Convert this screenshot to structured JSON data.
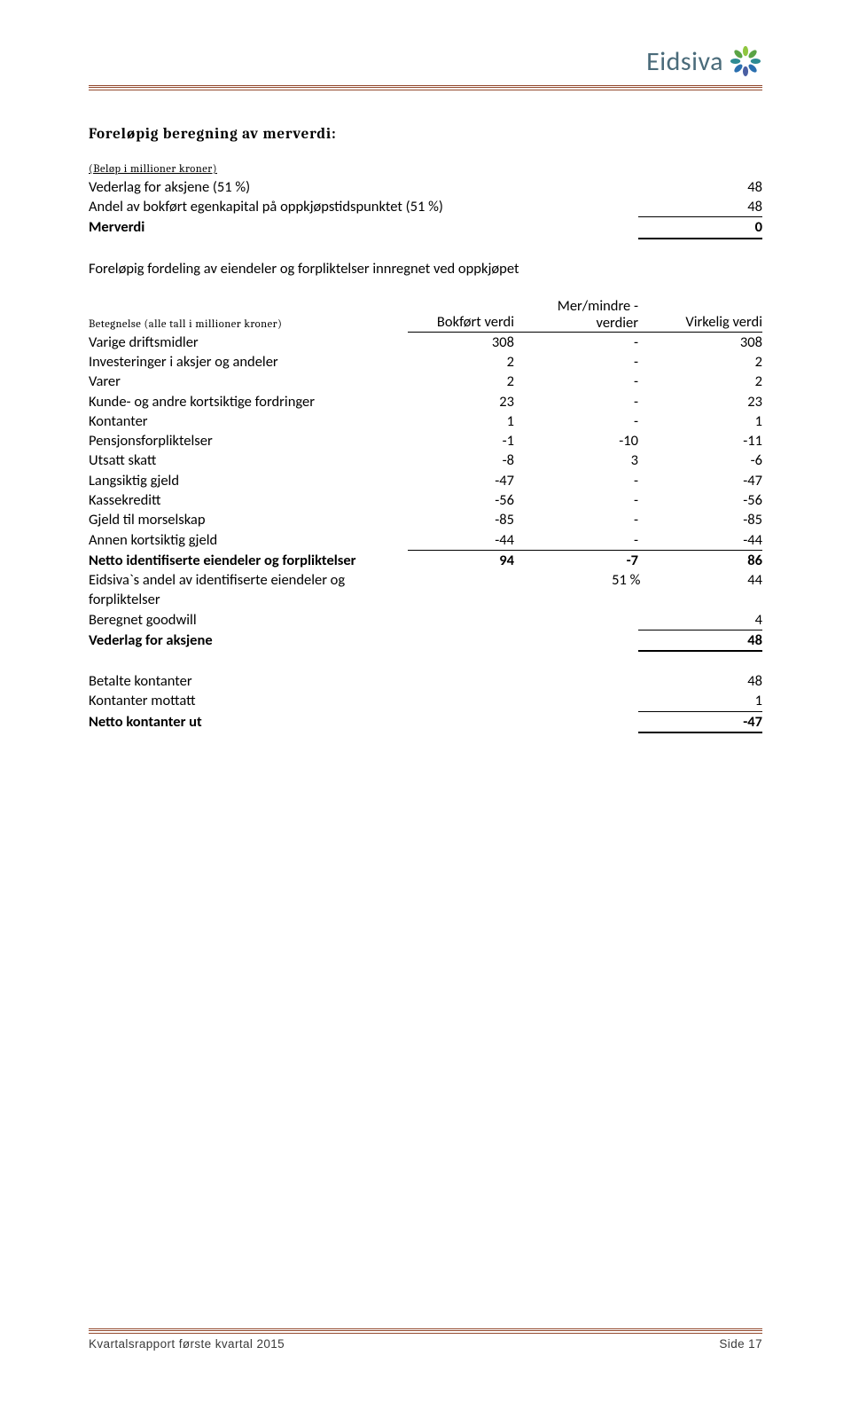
{
  "brand": {
    "name": "Eidsiva"
  },
  "heading": "Foreløpig beregning av merverdi:",
  "block1": {
    "note": "(Beløp i millioner kroner)",
    "rows": [
      {
        "label": "Vederlag for aksjene (51 %)",
        "val": "48"
      },
      {
        "label": "Andel av bokført egenkapital på oppkjøpstidspunktet (51 %)",
        "val": "48"
      }
    ],
    "total": {
      "label": "Merverdi",
      "val": "0"
    }
  },
  "block2": {
    "title": "Foreløpig fordeling av eiendeler og forpliktelser innregnet ved oppkjøpet",
    "header": {
      "label_note": "Betegnelse (alle tall i millioner kroner)",
      "col_a": "Bokført verdi",
      "col_b_line1": "Mer/mindre -",
      "col_b_line2": "verdier",
      "col_c": "Virkelig verdi"
    },
    "rows": [
      {
        "label": "Varige driftsmidler",
        "a": "308",
        "b": "-",
        "c": "308"
      },
      {
        "label": "Investeringer i aksjer og andeler",
        "a": "2",
        "b": "-",
        "c": "2"
      },
      {
        "label": "Varer",
        "a": "2",
        "b": "-",
        "c": "2"
      },
      {
        "label": "Kunde- og andre kortsiktige fordringer",
        "a": "23",
        "b": "-",
        "c": "23"
      },
      {
        "label": "Kontanter",
        "a": "1",
        "b": "-",
        "c": "1"
      },
      {
        "label": "Pensjonsforpliktelser",
        "a": "-1",
        "b": "-10",
        "c": "-11"
      },
      {
        "label": "Utsatt skatt",
        "a": "-8",
        "b": "3",
        "c": "-6"
      },
      {
        "label": "Langsiktig gjeld",
        "a": "-47",
        "b": "-",
        "c": "-47"
      },
      {
        "label": "Kassekreditt",
        "a": "-56",
        "b": "-",
        "c": "-56"
      },
      {
        "label": "Gjeld til morselskap",
        "a": "-85",
        "b": "-",
        "c": "-85"
      },
      {
        "label": "Annen kortsiktig gjeld",
        "a": "-44",
        "b": "-",
        "c": "-44"
      }
    ],
    "netto": {
      "label": "Netto identifiserte eiendeler og forpliktelser",
      "a": "94",
      "b": "-7",
      "c": "86"
    },
    "andel": {
      "label": "Eidsiva`s andel av identifiserte eiendeler og forpliktelser",
      "b": "51 %",
      "c": "44"
    },
    "goodwill": {
      "label": "Beregnet goodwill",
      "c": "4"
    },
    "vederlag": {
      "label": "Vederlag for aksjene",
      "c": "48"
    }
  },
  "block3": {
    "rows": [
      {
        "label": "Betalte kontanter",
        "val": "48"
      },
      {
        "label": "Kontanter mottatt",
        "val": "1"
      }
    ],
    "total": {
      "label": "Netto kontanter ut",
      "val": "-47"
    }
  },
  "footer": {
    "left": "Kvartalsrapport første kvartal 2015",
    "right": "Side 17"
  }
}
